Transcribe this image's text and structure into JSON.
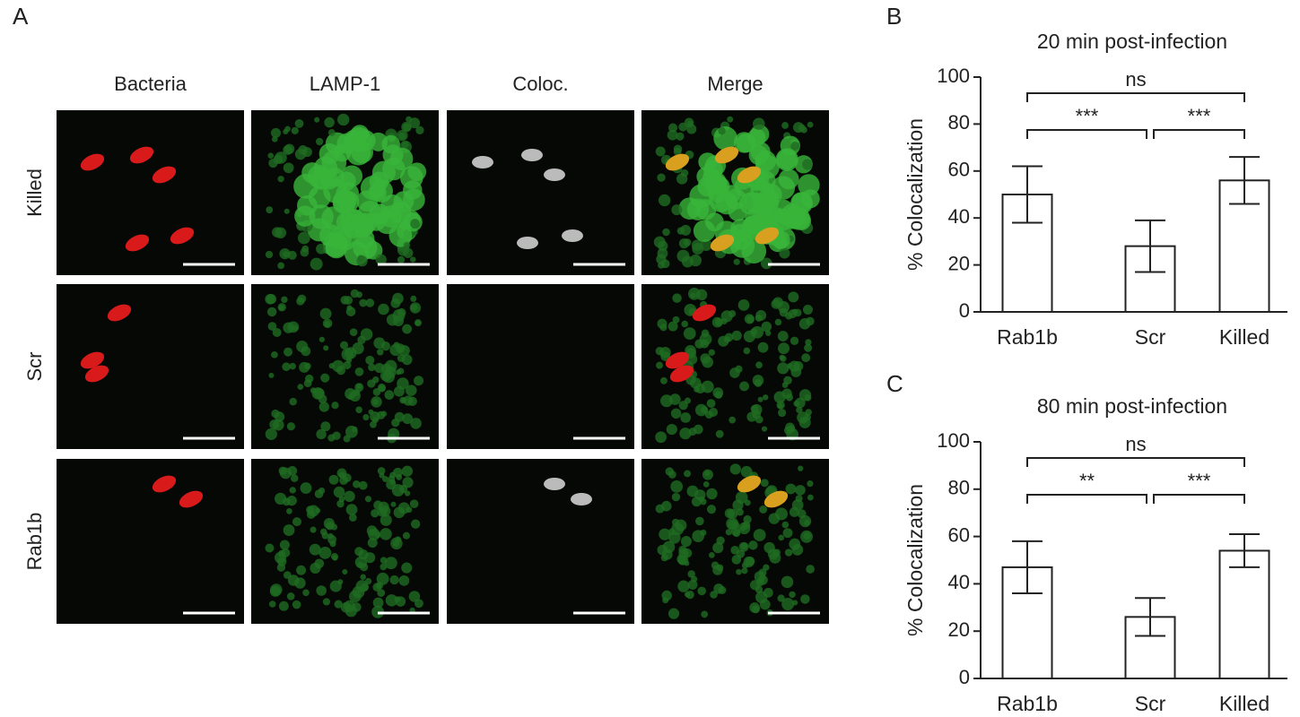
{
  "panel_a": {
    "label": "A",
    "columns": [
      "Bacteria",
      "LAMP-1",
      "Coloc.",
      "Merge"
    ],
    "rows": [
      "Killed",
      "Scr",
      "Rab1b"
    ]
  },
  "chart_data": [
    {
      "type": "bar",
      "panel": "B",
      "title": "20 min post-infection",
      "y_label": "% Colocalization",
      "categories": [
        "Rab1b",
        "Scr",
        "Killed"
      ],
      "values": [
        50,
        28,
        56
      ],
      "errors": [
        12,
        11,
        10
      ],
      "ylim": [
        0,
        100
      ],
      "yticks": [
        0,
        20,
        40,
        60,
        80,
        100
      ],
      "annotations": [
        "ns",
        "***",
        "***"
      ],
      "color": "#ffffff"
    },
    {
      "type": "bar",
      "panel": "C",
      "title": "80 min post-infection",
      "y_label": "% Colocalization",
      "categories": [
        "Rab1b",
        "Scr",
        "Killed"
      ],
      "values": [
        47,
        26,
        54
      ],
      "errors": [
        11,
        8,
        7
      ],
      "ylim": [
        0,
        100
      ],
      "yticks": [
        0,
        20,
        40,
        60,
        80,
        100
      ],
      "annotations": [
        "ns",
        "**",
        "***"
      ],
      "color": "#ffffff"
    }
  ]
}
